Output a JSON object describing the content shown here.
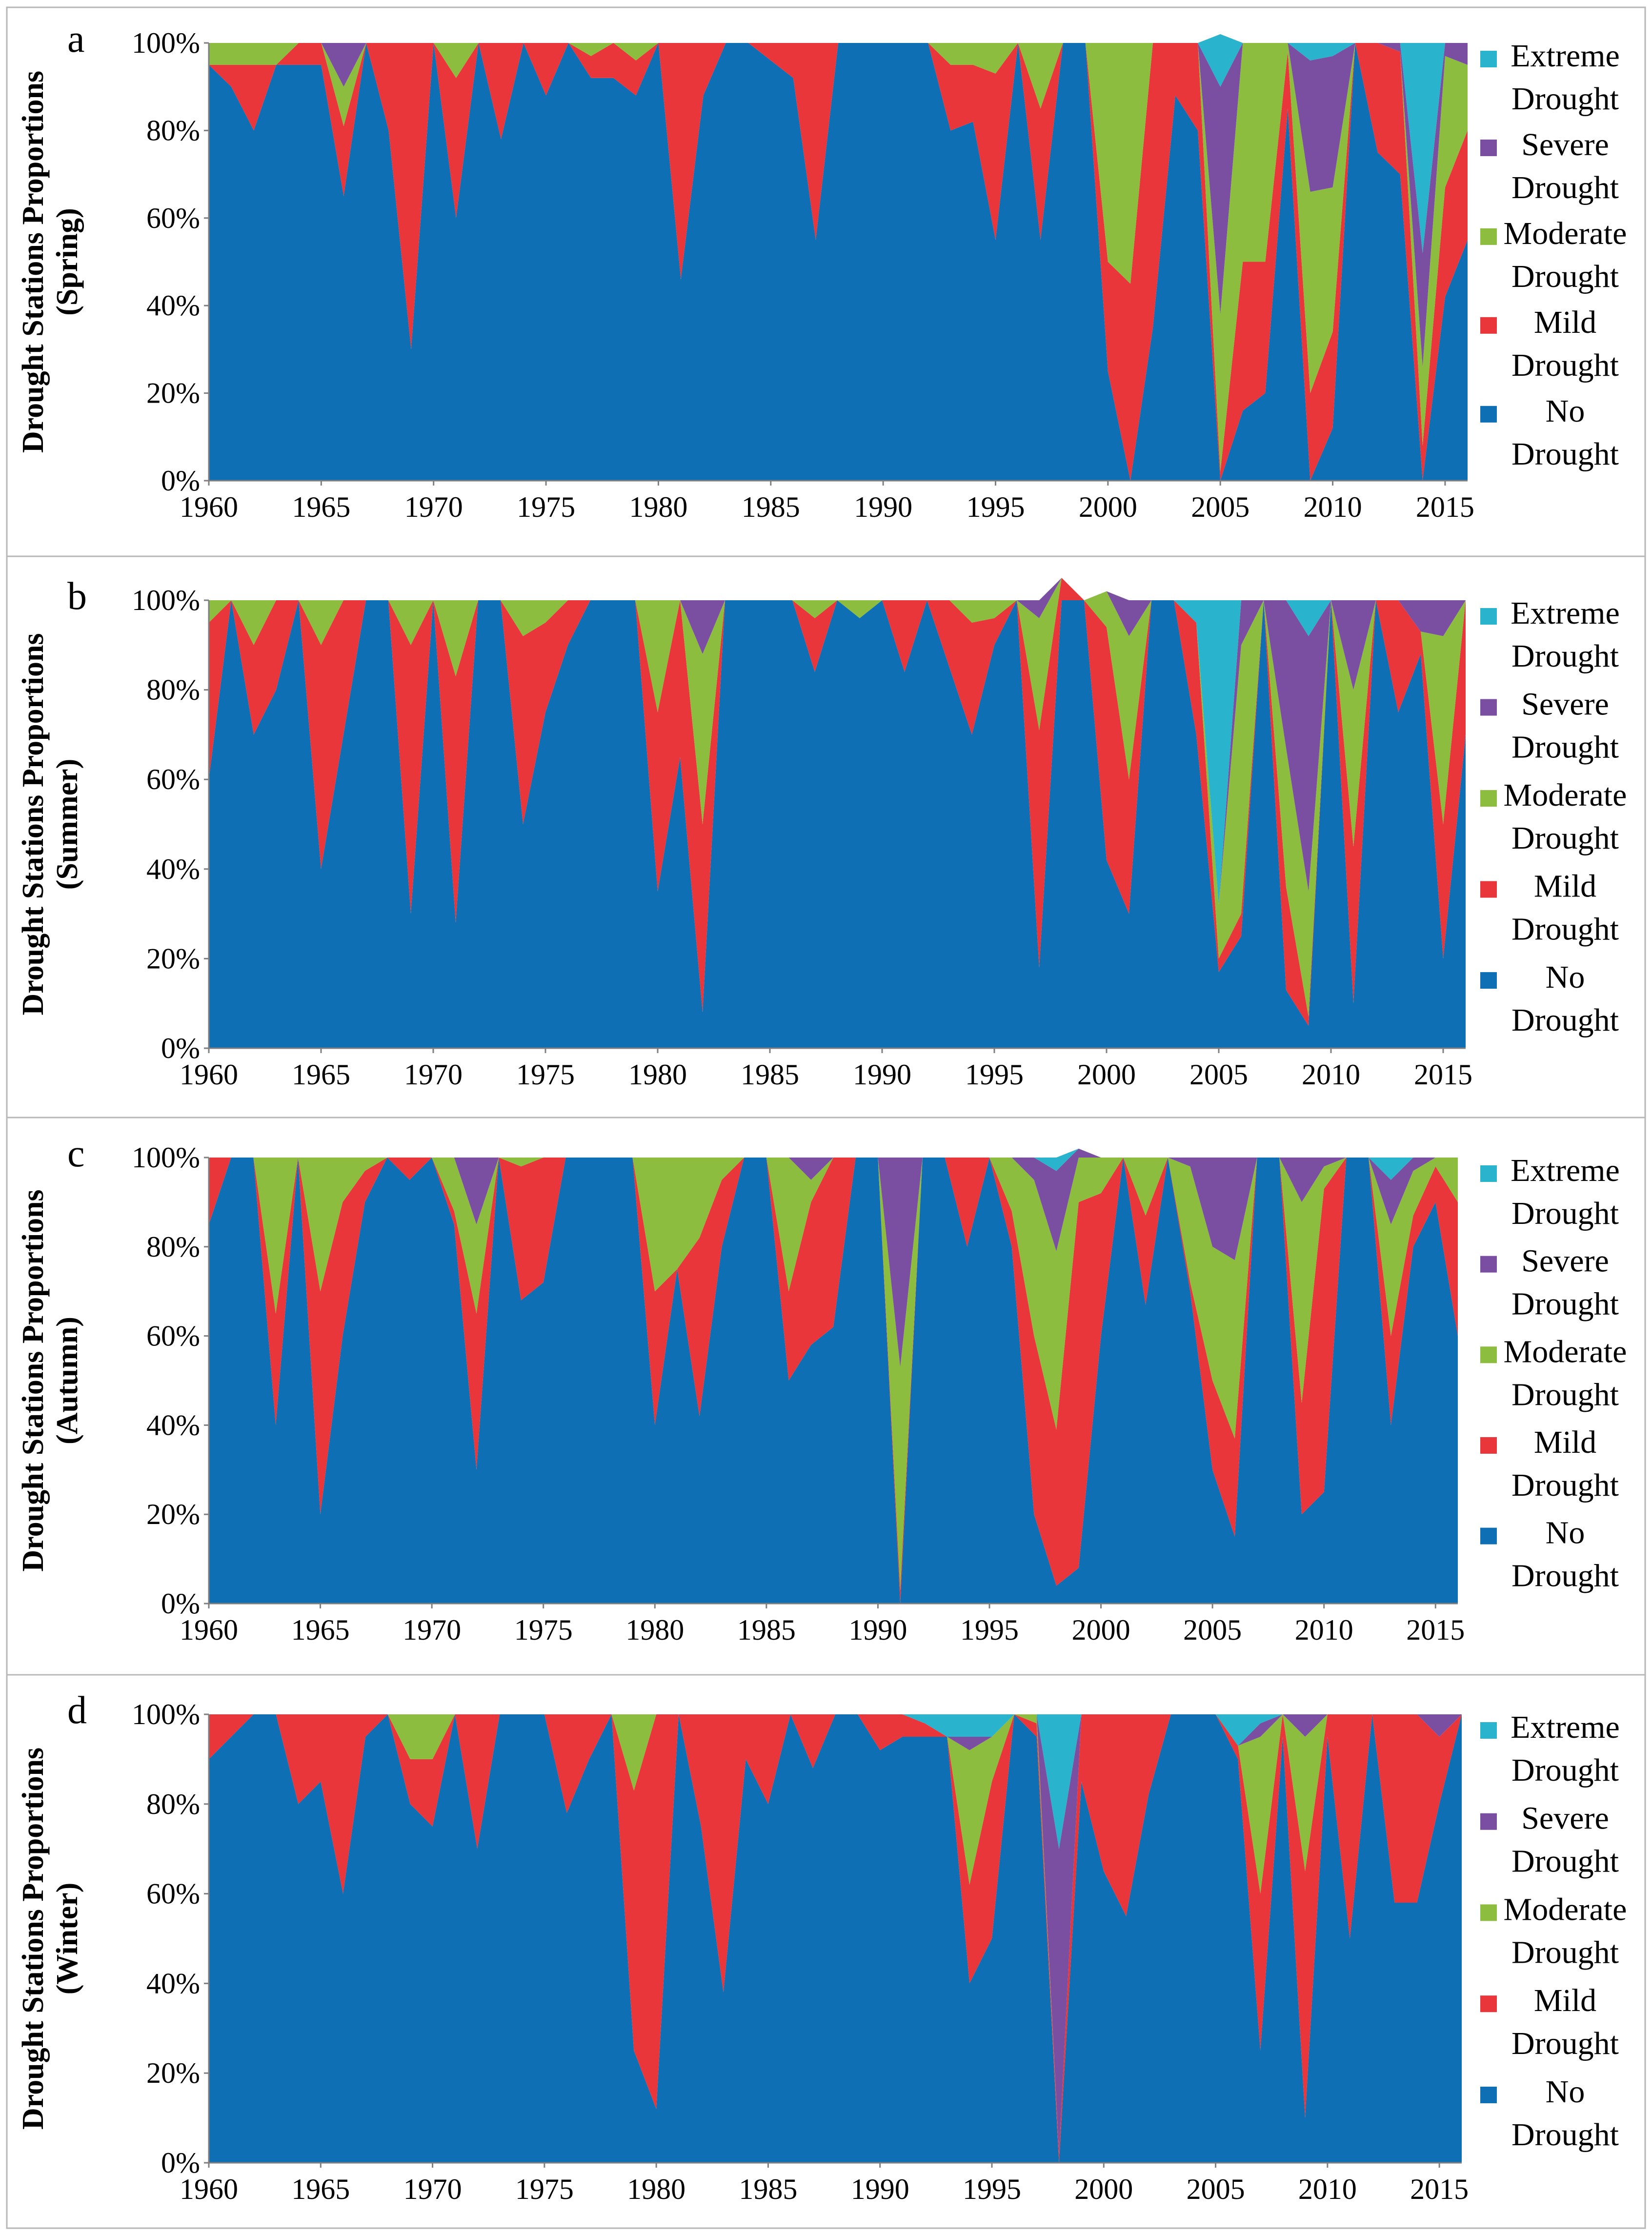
{
  "figure": {
    "x_ticks": [
      "1960",
      "1965",
      "1970",
      "1975",
      "1980",
      "1985",
      "1990",
      "1995",
      "2000",
      "2005",
      "2010",
      "2015"
    ],
    "y_ticks": [
      "0%",
      "20%",
      "40%",
      "60%",
      "80%",
      "100%"
    ]
  },
  "colors": {
    "no": "#0e6fb4",
    "mild": "#e8363a",
    "moderate": "#8cbd3f",
    "severe": "#7a4fa2",
    "extreme": "#2ab3cc"
  },
  "legend": [
    {
      "key": "extreme",
      "line1": "Extreme",
      "line2": "Drought",
      "color": "#2ab3cc"
    },
    {
      "key": "severe",
      "line1": "Severe",
      "line2": "Drought",
      "color": "#7a4fa2"
    },
    {
      "key": "moderate",
      "line1": "Moderate",
      "line2": "Drought",
      "color": "#8cbd3f"
    },
    {
      "key": "mild",
      "line1": "Mild",
      "line2": "Drought",
      "color": "#e8363a"
    },
    {
      "key": "no",
      "line1": "No",
      "line2": "Drought",
      "color": "#0e6fb4"
    }
  ],
  "chart_data": [
    {
      "type": "area",
      "stacked": true,
      "letter": "a",
      "ylabel_line1": "Drought Stations Proportions",
      "ylabel_line2": "(Spring)",
      "ylim": [
        0,
        100
      ],
      "x_start": 1960,
      "x_end": 2016,
      "no": [
        95,
        90,
        80,
        95,
        95,
        95,
        65,
        100,
        80,
        30,
        100,
        60,
        100,
        78,
        100,
        88,
        100,
        92,
        92,
        88,
        100,
        46,
        88,
        100,
        100,
        96,
        92,
        55,
        100,
        100,
        100,
        100,
        100,
        80,
        82,
        55,
        100,
        55,
        100,
        100,
        25,
        0,
        35,
        88,
        80,
        0,
        16,
        20,
        85,
        0,
        12,
        100,
        75,
        70,
        0,
        42,
        55
      ],
      "mild": [
        0,
        5,
        15,
        0,
        5,
        5,
        16,
        0,
        20,
        70,
        0,
        32,
        0,
        22,
        0,
        12,
        0,
        5,
        8,
        8,
        0,
        54,
        12,
        0,
        0,
        4,
        8,
        45,
        0,
        0,
        0,
        0,
        0,
        15,
        13,
        38,
        0,
        30,
        0,
        0,
        25,
        45,
        65,
        12,
        20,
        2,
        34,
        30,
        13,
        20,
        22,
        0,
        25,
        28,
        8,
        25,
        25
      ],
      "moderate": [
        5,
        5,
        5,
        5,
        0,
        0,
        9,
        0,
        0,
        0,
        0,
        8,
        0,
        0,
        0,
        0,
        0,
        3,
        0,
        4,
        0,
        0,
        0,
        0,
        0,
        0,
        0,
        0,
        0,
        0,
        0,
        0,
        0,
        5,
        5,
        7,
        0,
        15,
        0,
        0,
        50,
        55,
        0,
        0,
        0,
        36,
        50,
        50,
        2,
        46,
        33,
        0,
        0,
        0,
        18,
        30,
        15
      ],
      "severe": [
        0,
        0,
        0,
        0,
        0,
        0,
        10,
        0,
        0,
        0,
        0,
        0,
        0,
        0,
        0,
        0,
        0,
        0,
        0,
        0,
        0,
        0,
        0,
        0,
        0,
        0,
        0,
        0,
        0,
        0,
        0,
        0,
        0,
        0,
        0,
        0,
        0,
        0,
        0,
        0,
        0,
        0,
        0,
        0,
        0,
        52,
        0,
        0,
        0,
        30,
        30,
        0,
        0,
        2,
        26,
        3,
        5
      ],
      "extreme": [
        0,
        0,
        0,
        0,
        0,
        0,
        0,
        0,
        0,
        0,
        0,
        0,
        0,
        0,
        0,
        0,
        0,
        0,
        0,
        0,
        0,
        0,
        0,
        0,
        0,
        0,
        0,
        0,
        0,
        0,
        0,
        0,
        0,
        0,
        0,
        0,
        0,
        0,
        0,
        0,
        0,
        0,
        0,
        0,
        0,
        12,
        0,
        0,
        0,
        4,
        3,
        0,
        0,
        0,
        48,
        0,
        0
      ]
    },
    {
      "type": "area",
      "stacked": true,
      "letter": "b",
      "ylabel_line1": "Drought Stations Proportions",
      "ylabel_line2": "(Summer)",
      "ylim": [
        0,
        100
      ],
      "x_start": 1960,
      "x_end": 2016,
      "no": [
        60,
        100,
        70,
        80,
        100,
        40,
        70,
        100,
        100,
        30,
        100,
        28,
        100,
        100,
        50,
        75,
        90,
        100,
        100,
        100,
        35,
        65,
        8,
        100,
        100,
        100,
        100,
        84,
        100,
        96,
        100,
        84,
        100,
        85,
        70,
        90,
        100,
        18,
        100,
        100,
        42,
        30,
        100,
        100,
        70,
        17,
        25,
        100,
        13,
        5,
        100,
        10,
        100,
        75,
        88,
        20,
        70
      ],
      "mild": [
        35,
        0,
        20,
        20,
        0,
        50,
        30,
        0,
        0,
        60,
        0,
        55,
        0,
        0,
        42,
        20,
        10,
        0,
        0,
        0,
        40,
        35,
        42,
        0,
        0,
        0,
        0,
        12,
        0,
        0,
        0,
        16,
        0,
        15,
        25,
        6,
        0,
        53,
        5,
        0,
        52,
        30,
        0,
        0,
        25,
        3,
        5,
        0,
        23,
        2,
        0,
        35,
        0,
        25,
        5,
        30,
        30
      ],
      "moderate": [
        5,
        0,
        10,
        0,
        0,
        10,
        0,
        0,
        0,
        10,
        0,
        17,
        0,
        0,
        8,
        5,
        0,
        0,
        0,
        0,
        25,
        0,
        38,
        0,
        0,
        0,
        0,
        4,
        0,
        4,
        0,
        0,
        0,
        0,
        5,
        4,
        0,
        25,
        0,
        0,
        8,
        32,
        0,
        0,
        0,
        12,
        60,
        0,
        31,
        28,
        0,
        35,
        0,
        0,
        0,
        42,
        0
      ],
      "severe": [
        0,
        0,
        0,
        0,
        0,
        0,
        0,
        0,
        0,
        0,
        0,
        0,
        0,
        0,
        0,
        0,
        0,
        0,
        0,
        0,
        0,
        0,
        12,
        0,
        0,
        0,
        0,
        0,
        0,
        0,
        0,
        0,
        0,
        0,
        0,
        0,
        0,
        4,
        0,
        0,
        0,
        8,
        0,
        0,
        0,
        0,
        10,
        0,
        33,
        57,
        0,
        20,
        0,
        0,
        7,
        8,
        0
      ],
      "extreme": [
        0,
        0,
        0,
        0,
        0,
        0,
        0,
        0,
        0,
        0,
        0,
        0,
        0,
        0,
        0,
        0,
        0,
        0,
        0,
        0,
        0,
        0,
        0,
        0,
        0,
        0,
        0,
        0,
        0,
        0,
        0,
        0,
        0,
        0,
        0,
        0,
        0,
        0,
        0,
        0,
        0,
        0,
        0,
        0,
        5,
        68,
        0,
        0,
        0,
        8,
        0,
        0,
        0,
        0,
        0,
        0,
        0
      ]
    },
    {
      "type": "area",
      "stacked": true,
      "letter": "c",
      "ylabel_line1": "Drought Stations Proportions",
      "ylabel_line2": "(Autumn)",
      "ylim": [
        0,
        100
      ],
      "x_start": 1960,
      "x_end": 2016,
      "no": [
        85,
        100,
        100,
        40,
        100,
        20,
        60,
        90,
        100,
        95,
        100,
        85,
        30,
        100,
        68,
        72,
        100,
        100,
        100,
        100,
        40,
        75,
        42,
        80,
        100,
        100,
        50,
        58,
        62,
        100,
        100,
        0,
        100,
        100,
        80,
        100,
        80,
        20,
        4,
        8,
        60,
        100,
        67,
        100,
        70,
        30,
        15,
        100,
        100,
        20,
        25,
        100,
        100,
        40,
        80,
        90,
        60
      ],
      "mild": [
        15,
        0,
        0,
        25,
        0,
        50,
        30,
        7,
        0,
        5,
        0,
        3,
        35,
        0,
        30,
        28,
        0,
        0,
        0,
        0,
        30,
        0,
        40,
        15,
        0,
        0,
        20,
        32,
        38,
        0,
        0,
        3,
        0,
        0,
        20,
        0,
        8,
        40,
        35,
        82,
        32,
        0,
        20,
        0,
        2,
        20,
        22,
        0,
        0,
        25,
        68,
        0,
        0,
        20,
        7,
        8,
        30
      ],
      "moderate": [
        0,
        0,
        0,
        35,
        0,
        30,
        10,
        3,
        0,
        0,
        0,
        12,
        20,
        0,
        2,
        0,
        0,
        0,
        0,
        0,
        30,
        25,
        18,
        5,
        0,
        0,
        30,
        5,
        0,
        0,
        0,
        50,
        0,
        0,
        0,
        0,
        12,
        35,
        40,
        10,
        8,
        0,
        13,
        0,
        26,
        30,
        40,
        0,
        0,
        45,
        5,
        0,
        0,
        25,
        10,
        2,
        10
      ],
      "severe": [
        0,
        0,
        0,
        0,
        0,
        0,
        0,
        0,
        0,
        0,
        0,
        0,
        15,
        0,
        0,
        0,
        0,
        0,
        0,
        0,
        0,
        0,
        0,
        0,
        0,
        0,
        0,
        5,
        0,
        0,
        0,
        47,
        0,
        0,
        0,
        0,
        0,
        5,
        18,
        2,
        0,
        0,
        0,
        0,
        2,
        20,
        23,
        0,
        0,
        10,
        2,
        0,
        0,
        10,
        3,
        0,
        0
      ],
      "extreme": [
        0,
        0,
        0,
        0,
        0,
        0,
        0,
        0,
        0,
        0,
        0,
        0,
        0,
        0,
        0,
        0,
        0,
        0,
        0,
        0,
        0,
        0,
        0,
        0,
        0,
        0,
        0,
        0,
        0,
        0,
        0,
        0,
        0,
        0,
        0,
        0,
        0,
        0,
        3,
        0,
        0,
        0,
        0,
        0,
        0,
        0,
        0,
        0,
        0,
        0,
        0,
        0,
        0,
        5,
        0,
        0,
        0
      ]
    },
    {
      "type": "area",
      "stacked": true,
      "letter": "d",
      "ylabel_line1": "Drought Stations Proportions",
      "ylabel_line2": "(Winter)",
      "ylim": [
        0,
        100
      ],
      "x_start": 1960,
      "x_end": 2016,
      "no": [
        90,
        95,
        100,
        100,
        80,
        85,
        60,
        95,
        100,
        80,
        75,
        100,
        70,
        100,
        100,
        100,
        78,
        90,
        100,
        25,
        12,
        100,
        75,
        38,
        90,
        80,
        100,
        88,
        100,
        100,
        92,
        95,
        95,
        95,
        40,
        50,
        100,
        95,
        0,
        85,
        65,
        55,
        82,
        100,
        100,
        100,
        90,
        25,
        95,
        10,
        95,
        50,
        100,
        58,
        58,
        80,
        100
      ],
      "mild": [
        10,
        5,
        0,
        0,
        20,
        15,
        40,
        5,
        0,
        10,
        15,
        0,
        30,
        0,
        0,
        0,
        22,
        10,
        0,
        58,
        88,
        0,
        25,
        62,
        10,
        20,
        0,
        12,
        0,
        0,
        8,
        5,
        3,
        0,
        22,
        35,
        0,
        3,
        2,
        15,
        35,
        45,
        18,
        0,
        0,
        0,
        3,
        35,
        5,
        55,
        5,
        50,
        0,
        42,
        42,
        15,
        0
      ],
      "moderate": [
        0,
        0,
        0,
        0,
        0,
        0,
        0,
        0,
        0,
        10,
        10,
        0,
        0,
        0,
        0,
        0,
        0,
        0,
        0,
        17,
        0,
        0,
        0,
        0,
        0,
        0,
        0,
        0,
        0,
        0,
        0,
        0,
        0,
        0,
        30,
        10,
        0,
        2,
        0,
        0,
        0,
        0,
        0,
        0,
        0,
        0,
        0,
        35,
        0,
        30,
        0,
        0,
        0,
        0,
        0,
        0,
        0
      ],
      "severe": [
        0,
        0,
        0,
        0,
        0,
        0,
        0,
        0,
        0,
        0,
        0,
        0,
        0,
        0,
        0,
        0,
        0,
        0,
        0,
        0,
        0,
        0,
        0,
        0,
        0,
        0,
        0,
        0,
        0,
        0,
        0,
        0,
        0,
        0,
        3,
        0,
        0,
        0,
        68,
        0,
        0,
        0,
        0,
        0,
        0,
        0,
        0,
        3,
        0,
        5,
        0,
        0,
        0,
        0,
        0,
        5,
        0
      ],
      "extreme": [
        0,
        0,
        0,
        0,
        0,
        0,
        0,
        0,
        0,
        0,
        0,
        0,
        0,
        0,
        0,
        0,
        0,
        0,
        0,
        0,
        0,
        0,
        0,
        0,
        0,
        0,
        0,
        0,
        0,
        0,
        0,
        0,
        2,
        5,
        5,
        5,
        0,
        0,
        30,
        0,
        0,
        0,
        0,
        0,
        0,
        0,
        7,
        2,
        0,
        0,
        0,
        0,
        0,
        0,
        0,
        0,
        0
      ]
    }
  ]
}
